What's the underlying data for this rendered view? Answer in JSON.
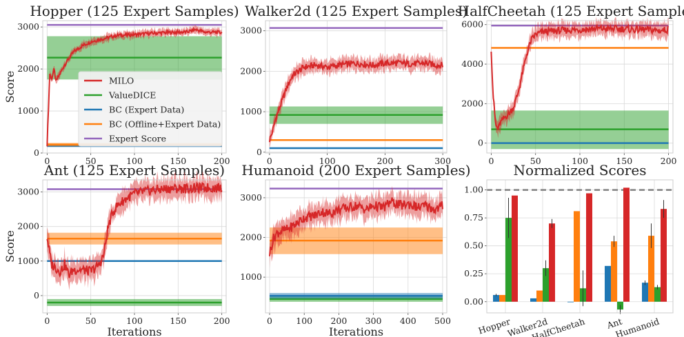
{
  "colors": {
    "milo": "#d62728",
    "valuedice": "#2ca02c",
    "bc_expert": "#1f77b4",
    "bc_offline": "#ff7f0e",
    "expert": "#9467bd",
    "grid": "#d9d9d9",
    "frame": "#cccccc",
    "dashed": "#808080"
  },
  "legend": {
    "placement": "inside Hopper panel, lower-right",
    "labels": [
      "MILO",
      "ValueDICE",
      "BC (Expert Data)",
      "BC (Offline+Expert Data)",
      "Expert Score"
    ]
  },
  "chart_data": [
    {
      "type": "line",
      "title": "Hopper (125 Expert Samples)",
      "xlabel": "",
      "ylabel": "Score",
      "xlim": [
        -5,
        205
      ],
      "ylim": [
        0,
        3150
      ],
      "xticks": [
        0,
        50,
        100,
        150,
        200
      ],
      "yticks": [
        0,
        1000,
        2000,
        3000
      ],
      "grid": true,
      "series": [
        {
          "name": "MILO",
          "x": [
            0,
            3,
            5,
            8,
            10,
            15,
            20,
            25,
            30,
            40,
            50,
            60,
            70,
            80,
            100,
            120,
            140,
            160,
            170,
            180,
            200
          ],
          "y": [
            200,
            1900,
            1750,
            2000,
            1700,
            1900,
            2100,
            2250,
            2400,
            2550,
            2650,
            2700,
            2750,
            2800,
            2820,
            2850,
            2870,
            2880,
            2940,
            2880,
            2870
          ],
          "band": 90
        },
        {
          "name": "ValueDICE",
          "flat": 2270,
          "lo": 1750,
          "hi": 2780,
          "x": [
            0,
            200
          ]
        },
        {
          "name": "BC (Expert Data)",
          "flat": 170,
          "lo": 140,
          "hi": 200,
          "x": [
            0,
            200
          ]
        },
        {
          "name": "BC (Offline+Expert Data)",
          "flat": 200,
          "lo": 160,
          "hi": 240,
          "x": [
            0,
            200
          ]
        },
        {
          "name": "Expert Score",
          "flat": 3050,
          "x": [
            0,
            200
          ]
        }
      ]
    },
    {
      "type": "line",
      "title": "Walker2d (125 Expert Samples)",
      "xlabel": "",
      "ylabel": "",
      "xlim": [
        -7,
        307
      ],
      "ylim": [
        -20,
        3250
      ],
      "xticks": [
        0,
        100,
        200,
        300
      ],
      "yticks": [
        0,
        1000,
        2000,
        3000
      ],
      "grid": true,
      "series": [
        {
          "name": "MILO",
          "x": [
            0,
            5,
            10,
            20,
            30,
            40,
            50,
            60,
            80,
            100,
            120,
            150,
            180,
            200,
            230,
            250,
            270,
            290,
            300
          ],
          "y": [
            300,
            500,
            800,
            1200,
            1600,
            1900,
            2000,
            2100,
            2150,
            2100,
            2150,
            2200,
            2150,
            2200,
            2200,
            2180,
            2200,
            2150,
            2150
          ],
          "band": 180
        },
        {
          "name": "ValueDICE",
          "flat": 920,
          "lo": 700,
          "hi": 1130,
          "x": [
            0,
            300
          ]
        },
        {
          "name": "BC (Expert Data)",
          "flat": 100,
          "lo": 80,
          "hi": 120,
          "x": [
            0,
            300
          ]
        },
        {
          "name": "BC (Offline+Expert Data)",
          "flat": 300,
          "lo": 280,
          "hi": 320,
          "x": [
            0,
            300
          ]
        },
        {
          "name": "Expert Score",
          "flat": 3070,
          "x": [
            0,
            300
          ]
        }
      ]
    },
    {
      "type": "line",
      "title": "HalfCheetah (125 Expert Samples)",
      "xlabel": "",
      "ylabel": "",
      "xlim": [
        -5,
        205
      ],
      "ylim": [
        -500,
        6200
      ],
      "xticks": [
        0,
        50,
        100,
        150,
        200
      ],
      "yticks": [
        0,
        2000,
        4000,
        6000
      ],
      "grid": true,
      "series": [
        {
          "name": "MILO",
          "x": [
            0,
            2,
            5,
            8,
            10,
            15,
            20,
            25,
            30,
            35,
            40,
            45,
            50,
            60,
            80,
            100,
            120,
            150,
            160,
            170,
            190,
            200
          ],
          "y": [
            4800,
            2500,
            900,
            700,
            1000,
            1300,
            1500,
            1800,
            2500,
            3500,
            4500,
            5200,
            5500,
            5650,
            5700,
            5750,
            5800,
            5780,
            5750,
            5750,
            5700,
            5750
          ],
          "band": 400
        },
        {
          "name": "ValueDICE",
          "flat": 700,
          "lo": -300,
          "hi": 1650,
          "x": [
            0,
            200
          ]
        },
        {
          "name": "BC (Expert Data)",
          "flat": 0,
          "lo": -30,
          "hi": 30,
          "x": [
            0,
            200
          ]
        },
        {
          "name": "BC (Offline+Expert Data)",
          "flat": 4820,
          "lo": 4790,
          "hi": 4850,
          "x": [
            0,
            200
          ]
        },
        {
          "name": "Expert Score",
          "flat": 5950,
          "x": [
            0,
            200
          ]
        }
      ]
    },
    {
      "type": "line",
      "title": "Ant (125 Expert Samples)",
      "xlabel": "Iterations",
      "ylabel": "Score",
      "xlim": [
        -5,
        205
      ],
      "ylim": [
        -500,
        3350
      ],
      "xticks": [
        0,
        50,
        100,
        150,
        200
      ],
      "yticks": [
        0,
        1000,
        2000,
        3000
      ],
      "grid": true,
      "series": [
        {
          "name": "MILO",
          "x": [
            0,
            5,
            10,
            15,
            20,
            25,
            30,
            40,
            50,
            55,
            60,
            65,
            70,
            75,
            80,
            90,
            100,
            120,
            140,
            160,
            180,
            200
          ],
          "y": [
            1700,
            900,
            800,
            700,
            900,
            600,
            750,
            750,
            700,
            800,
            900,
            1200,
            2000,
            2400,
            2600,
            2800,
            2950,
            3050,
            3100,
            3100,
            3120,
            3120
          ],
          "band": 320
        },
        {
          "name": "ValueDICE",
          "flat": -200,
          "lo": -300,
          "hi": -100,
          "x": [
            0,
            200
          ]
        },
        {
          "name": "BC (Expert Data)",
          "flat": 1000,
          "lo": 975,
          "hi": 1025,
          "x": [
            0,
            200
          ]
        },
        {
          "name": "BC (Offline+Expert Data)",
          "flat": 1650,
          "lo": 1480,
          "hi": 1820,
          "x": [
            0,
            200
          ]
        },
        {
          "name": "Expert Score",
          "flat": 3080,
          "x": [
            0,
            200
          ]
        }
      ]
    },
    {
      "type": "line",
      "title": "Humanoid (200 Expert Samples)",
      "xlabel": "Iterations",
      "ylabel": "",
      "xlim": [
        -12,
        512
      ],
      "ylim": [
        100,
        3450
      ],
      "xticks": [
        0,
        100,
        200,
        300,
        400,
        500
      ],
      "yticks": [
        1000,
        2000,
        3000
      ],
      "grid": true,
      "series": [
        {
          "name": "MILO",
          "x": [
            0,
            10,
            20,
            30,
            50,
            70,
            100,
            130,
            150,
            170,
            200,
            230,
            250,
            280,
            300,
            330,
            350,
            380,
            400,
            430,
            450,
            480,
            500
          ],
          "y": [
            1600,
            1950,
            2100,
            2150,
            2200,
            2300,
            2500,
            2550,
            2650,
            2600,
            2700,
            2750,
            2800,
            2700,
            2800,
            2750,
            2900,
            2800,
            2850,
            2750,
            2800,
            2700,
            2800
          ],
          "band": 280
        },
        {
          "name": "ValueDICE",
          "flat": 450,
          "lo": 380,
          "hi": 520,
          "x": [
            0,
            500
          ]
        },
        {
          "name": "BC (Expert Data)",
          "flat": 530,
          "lo": 460,
          "hi": 600,
          "x": [
            0,
            500
          ]
        },
        {
          "name": "BC (Offline+Expert Data)",
          "flat": 1920,
          "lo": 1580,
          "hi": 2250,
          "x": [
            0,
            500
          ]
        },
        {
          "name": "Expert Score",
          "flat": 3230,
          "x": [
            0,
            500
          ]
        }
      ]
    },
    {
      "type": "bar",
      "title": "Normalized Scores",
      "xlabel": "",
      "ylabel": "",
      "categories": [
        "Hopper",
        "Walker2d",
        "HalfCheetah",
        "Ant",
        "Humanoid"
      ],
      "ylim": [
        -0.1,
        1.09
      ],
      "yticks": [
        0.0,
        0.25,
        0.5,
        0.75,
        1.0
      ],
      "reference_line": 1.0,
      "grid": true,
      "series": [
        {
          "name": "BC (Expert Data)",
          "values": [
            0.06,
            0.03,
            0.0,
            0.32,
            0.17
          ],
          "err": [
            0.01,
            0.0,
            0.0,
            0.0,
            0.02
          ]
        },
        {
          "name": "BC (Offline+Expert Data)",
          "values": [
            0.06,
            0.1,
            0.81,
            0.54,
            0.59
          ],
          "err": [
            0.0,
            0.0,
            0.0,
            0.05,
            0.11
          ]
        },
        {
          "name": "ValueDICE",
          "values": [
            0.75,
            0.3,
            0.12,
            -0.07,
            0.13
          ],
          "err": [
            0.18,
            0.07,
            0.16,
            0.04,
            0.02
          ]
        },
        {
          "name": "MILO",
          "values": [
            0.95,
            0.7,
            0.97,
            1.02,
            0.83
          ],
          "err": [
            0.0,
            0.04,
            0.0,
            0.0,
            0.08
          ]
        }
      ]
    }
  ]
}
